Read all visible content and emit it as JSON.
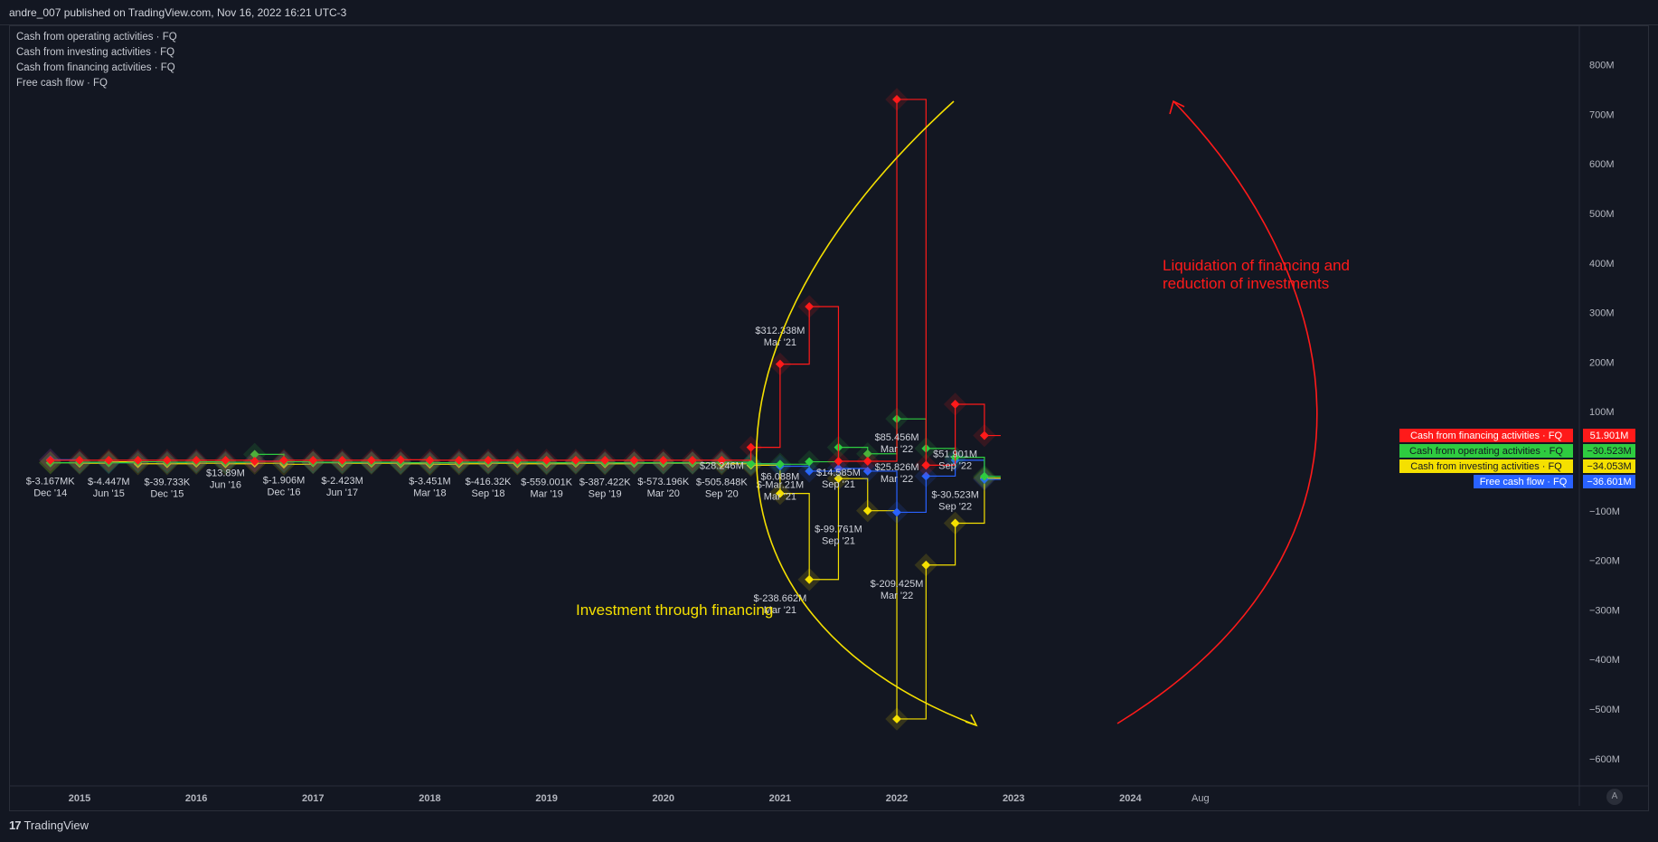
{
  "header": {
    "publisher": "andre_007 published on TradingView.com, Nov 16, 2022 16:21 UTC-3"
  },
  "legend": {
    "items": [
      "Cash from operating activities · FQ",
      "Cash from investing activities · FQ",
      "Cash from financing activities · FQ",
      "Free cash flow · FQ"
    ]
  },
  "footer": {
    "brand": "TradingView",
    "logo_glyph": "17"
  },
  "auto_button": "A",
  "annotations": {
    "red_note": [
      "Liquidation of financing and",
      "reduction of investments"
    ],
    "yellow_note": "Investment through financing"
  },
  "colors": {
    "financing": "#ff1a1a",
    "operating": "#2ecc40",
    "investing": "#f5e000",
    "fcf": "#2962ff",
    "annotation_red": "#ff1a1a",
    "annotation_yellow": "#f5e000"
  },
  "chart_data": {
    "type": "line",
    "title": "",
    "y_axis": {
      "label": "",
      "ticks": [
        800,
        700,
        600,
        500,
        400,
        300,
        200,
        100,
        0,
        -100,
        -200,
        -300,
        -400,
        -500,
        -600
      ],
      "tick_labels": [
        "800M",
        "700M",
        "600M",
        "500M",
        "400M",
        "300M",
        "200M",
        "100M",
        "",
        "−100M",
        "−200M",
        "−300M",
        "−400M",
        "−500M",
        "−600M"
      ],
      "ylim": [
        -640,
        850
      ]
    },
    "x_axis": {
      "labels": [
        "2015",
        "2016",
        "2017",
        "2018",
        "2019",
        "2020",
        "2021",
        "2022",
        "2023",
        "2024",
        "Aug"
      ],
      "xlim": [
        2014.6,
        2025.1
      ]
    },
    "series": [
      {
        "name": "Cash from financing activities · FQ",
        "key": "financing",
        "x": [
          2014.75,
          2015.0,
          2015.25,
          2015.5,
          2015.75,
          2016.0,
          2016.25,
          2016.5,
          2016.75,
          2017.0,
          2017.25,
          2017.5,
          2017.75,
          2018.0,
          2018.25,
          2018.5,
          2018.75,
          2019.0,
          2019.25,
          2019.5,
          2019.75,
          2020.0,
          2020.25,
          2020.5,
          2020.75,
          2021.0,
          2021.25,
          2021.5,
          2021.75,
          2022.0,
          2022.25,
          2022.5,
          2022.75
        ],
        "values": [
          2,
          2,
          2,
          2,
          2,
          2,
          2,
          0,
          2,
          2,
          2,
          2,
          3,
          2,
          2,
          2,
          2,
          2,
          2,
          2,
          2,
          2,
          2,
          2,
          28,
          196,
          312,
          0,
          0,
          730,
          -8,
          115,
          51.901
        ]
      },
      {
        "name": "Cash from operating activities · FQ",
        "key": "operating",
        "x": [
          2014.75,
          2015.0,
          2015.25,
          2015.5,
          2015.75,
          2016.0,
          2016.25,
          2016.5,
          2016.75,
          2017.0,
          2017.25,
          2017.5,
          2017.75,
          2018.0,
          2018.25,
          2018.5,
          2018.75,
          2019.0,
          2019.25,
          2019.5,
          2019.75,
          2020.0,
          2020.25,
          2020.5,
          2020.75,
          2021.0,
          2021.25,
          2021.5,
          2021.75,
          2022.0,
          2022.25,
          2022.5,
          2022.75
        ],
        "values": [
          -3,
          -2,
          -3,
          -1,
          -2,
          -1,
          -2,
          13.89,
          -1,
          -2,
          -2,
          -2,
          -3,
          -3,
          -2,
          -2,
          -2,
          -3,
          -2,
          -3,
          -3,
          -3,
          -3,
          -2,
          -5,
          -6,
          -1,
          28,
          15,
          85.456,
          25.826,
          8,
          -30.523
        ]
      },
      {
        "name": "Cash from investing activities · FQ",
        "key": "investing",
        "x": [
          2014.75,
          2015.0,
          2015.25,
          2015.5,
          2015.75,
          2016.0,
          2016.25,
          2016.5,
          2016.75,
          2017.0,
          2017.25,
          2017.5,
          2017.75,
          2018.0,
          2018.25,
          2018.5,
          2018.75,
          2019.0,
          2019.25,
          2019.5,
          2019.75,
          2020.0,
          2020.25,
          2020.5,
          2020.75,
          2021.0,
          2021.25,
          2021.5,
          2021.75,
          2022.0,
          2022.25,
          2022.5,
          2022.75
        ],
        "values": [
          -3,
          -4,
          -1,
          -5,
          -5,
          -4,
          -5,
          -4,
          -6,
          -3,
          -4,
          -4,
          -5,
          -6,
          -5,
          -4,
          -5,
          -5,
          -4,
          -5,
          -4,
          -4,
          -4,
          -5,
          -8,
          -65,
          -238.662,
          -35,
          -99.761,
          -520,
          -209.425,
          -125,
          -34.053
        ]
      },
      {
        "name": "Free cash flow · FQ",
        "key": "fcf",
        "x": [
          2014.75,
          2015.0,
          2015.25,
          2015.5,
          2015.75,
          2016.0,
          2016.25,
          2016.5,
          2016.75,
          2017.0,
          2017.25,
          2017.5,
          2017.75,
          2018.0,
          2018.25,
          2018.5,
          2018.75,
          2019.0,
          2019.25,
          2019.5,
          2019.75,
          2020.0,
          2020.25,
          2020.5,
          2020.75,
          2021.0,
          2021.25,
          2021.5,
          2021.75,
          2022.0,
          2022.25,
          2022.5,
          2022.75
        ],
        "values": [
          3,
          -2,
          -3,
          -1,
          -2,
          -1,
          -2,
          0,
          -1,
          -2,
          -2,
          -2,
          -3,
          -3,
          -2,
          -2,
          -2,
          -3,
          -2,
          -3,
          -3,
          -3,
          -3,
          -2,
          -5,
          -10,
          -20,
          -14.585,
          -20,
          -103,
          -30,
          2,
          -36.601
        ]
      }
    ],
    "point_labels": [
      {
        "x": 2014.75,
        "y": -3,
        "text": "$-3.167MK",
        "date": "Dec '14"
      },
      {
        "x": 2015.25,
        "y": -4,
        "text": "$-4.447M",
        "date": "Jun '15"
      },
      {
        "x": 2015.75,
        "y": -5,
        "text": "$-39.733K",
        "date": "Dec '15"
      },
      {
        "x": 2016.25,
        "y": 13.89,
        "text": "$13.89M",
        "date": "Jun '16"
      },
      {
        "x": 2016.75,
        "y": -1,
        "text": "$-1.906M",
        "date": "Dec '16"
      },
      {
        "x": 2017.25,
        "y": -2,
        "text": "$-2.423M",
        "date": "Jun '17"
      },
      {
        "x": 2018.0,
        "y": -3,
        "text": "$-3.451M",
        "date": "Mar '18"
      },
      {
        "x": 2018.5,
        "y": -4,
        "text": "$-416.32K",
        "date": "Sep '18"
      },
      {
        "x": 2019.0,
        "y": -5,
        "text": "$-559.001K",
        "date": "Mar '19"
      },
      {
        "x": 2019.5,
        "y": -5,
        "text": "$-387.422K",
        "date": "Sep '19"
      },
      {
        "x": 2020.0,
        "y": -4,
        "text": "$-573.196K",
        "date": "Mar '20"
      },
      {
        "x": 2020.5,
        "y": -5,
        "text": "$-505.848K",
        "date": "Sep '20"
      },
      {
        "x": 2020.5,
        "y": 28,
        "text": "$28.246M",
        "date": ""
      },
      {
        "x": 2021.0,
        "y": 312.338,
        "text": "$312.338M",
        "date": "Mar '21"
      },
      {
        "x": 2021.0,
        "y": 6.088,
        "text": "$6.088M",
        "date": ""
      },
      {
        "x": 2021.0,
        "y": -10,
        "text": "$-Mar.21M",
        "date": "Mar '21"
      },
      {
        "x": 2021.0,
        "y": -238.662,
        "text": "$-238.662M",
        "date": "Mar '21"
      },
      {
        "x": 2021.5,
        "y": 14.585,
        "text": "$14.585M",
        "date": "Sep '21"
      },
      {
        "x": 2021.5,
        "y": -99.761,
        "text": "$-99.761M",
        "date": "Sep '21"
      },
      {
        "x": 2022.0,
        "y": 85.456,
        "text": "$85.456M",
        "date": "Mar '22"
      },
      {
        "x": 2022.0,
        "y": 25.826,
        "text": "$25.826M",
        "date": "Mar '22"
      },
      {
        "x": 2022.0,
        "y": -209.425,
        "text": "$-209.425M",
        "date": "Mar '22"
      },
      {
        "x": 2022.5,
        "y": 51.901,
        "text": "$51.901M",
        "date": "Sep '22"
      },
      {
        "x": 2022.5,
        "y": -30.523,
        "text": "$-30.523M",
        "date": "Sep '22"
      }
    ],
    "last_value_badges": [
      {
        "key": "financing",
        "label": "Cash from financing activities · FQ",
        "value": "51.901M"
      },
      {
        "key": "operating",
        "label": "Cash from operating activities · FQ",
        "value": "−30.523M"
      },
      {
        "key": "investing",
        "label": "Cash from investing activities · FQ",
        "value": "−34.053M"
      },
      {
        "key": "fcf",
        "label": "Free cash flow · FQ",
        "value": "−36.601M"
      }
    ]
  }
}
